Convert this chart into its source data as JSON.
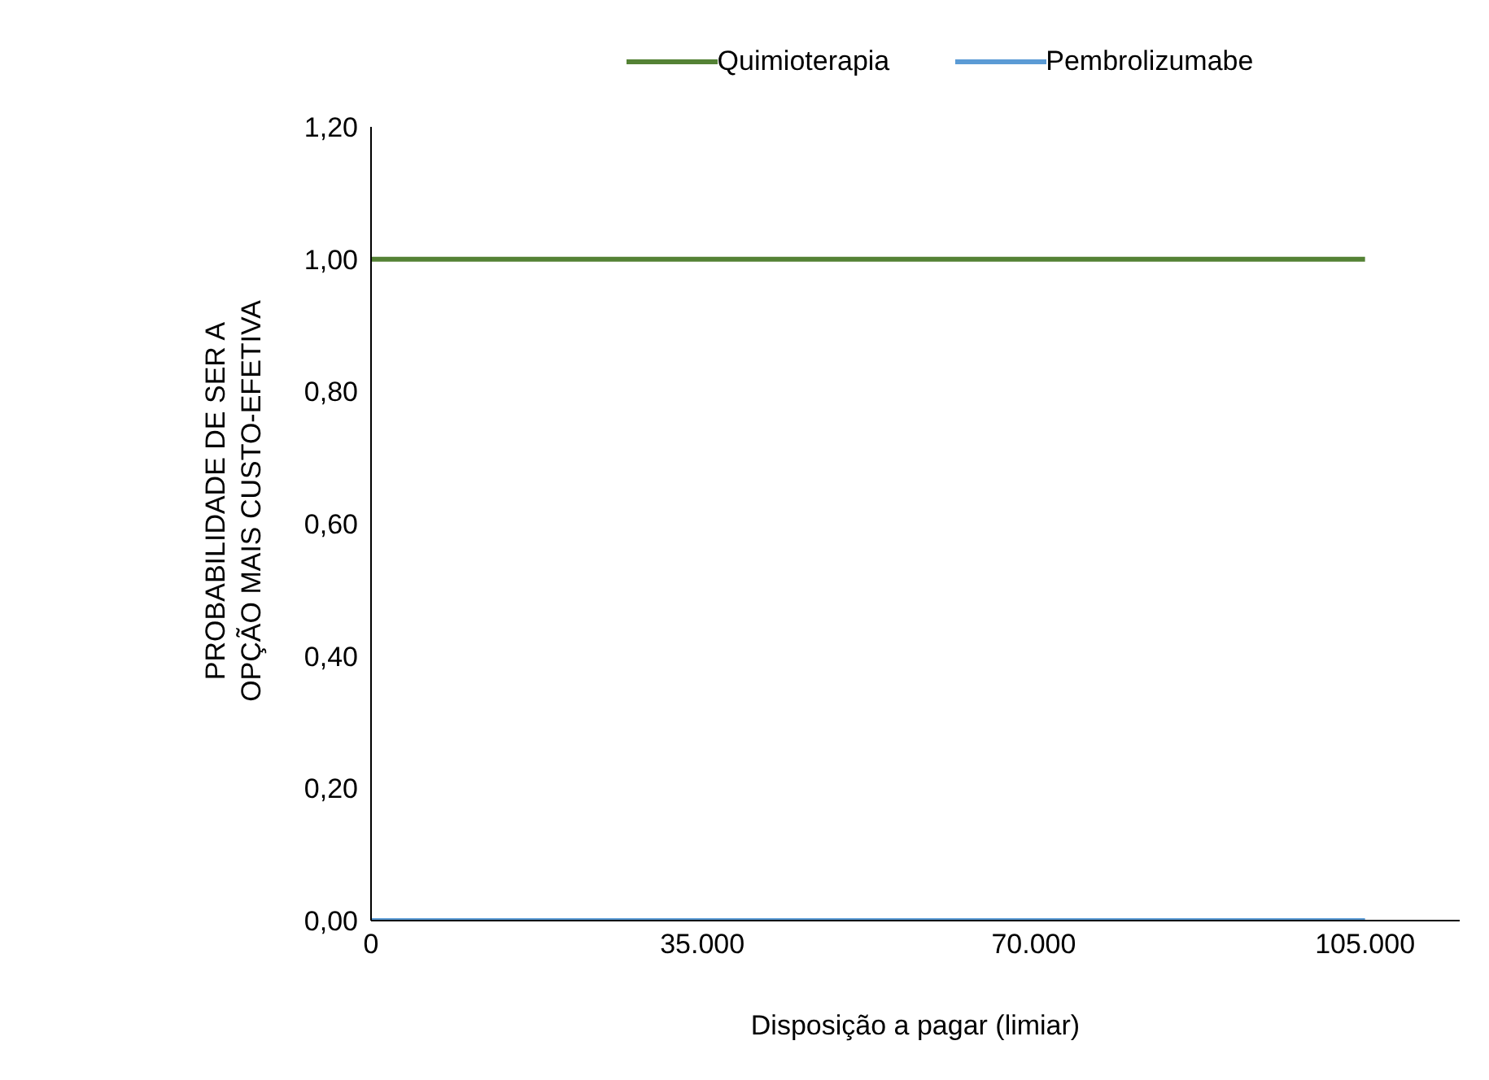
{
  "chart_data": {
    "type": "line",
    "xlabel": "Disposição a pagar (limiar)",
    "ylabel": "PROBABILIDADE DE SER A\nOPÇÃO MAIS CUSTO-EFETIVA",
    "x": [
      0,
      105000
    ],
    "series": [
      {
        "name": "Quimioterapia",
        "color": "#548235",
        "values": [
          1,
          1
        ]
      },
      {
        "name": "Pembrolizumabe",
        "color": "#5b9bd5",
        "values": [
          0,
          0
        ]
      }
    ],
    "xlim": [
      0,
      115000
    ],
    "xticks": [
      0,
      {
        "value": 35000,
        "label": "35.000"
      },
      {
        "value": 70000,
        "label": "70.000"
      },
      {
        "value": 105000,
        "label": "105.000"
      }
    ],
    "ylim": [
      0,
      1.2
    ],
    "yticks": [
      {
        "value": 0,
        "label": "0,00"
      },
      {
        "value": 0.2,
        "label": "0,20"
      },
      {
        "value": 0.4,
        "label": "0,40"
      },
      {
        "value": 0.6,
        "label": "0,60"
      },
      {
        "value": 0.8,
        "label": "0,80"
      },
      {
        "value": 1,
        "label": "1,00"
      },
      {
        "value": 1.2,
        "label": "1,20"
      }
    ],
    "grid": false,
    "legend": "top",
    "marker": "none",
    "line_style": "solid"
  }
}
